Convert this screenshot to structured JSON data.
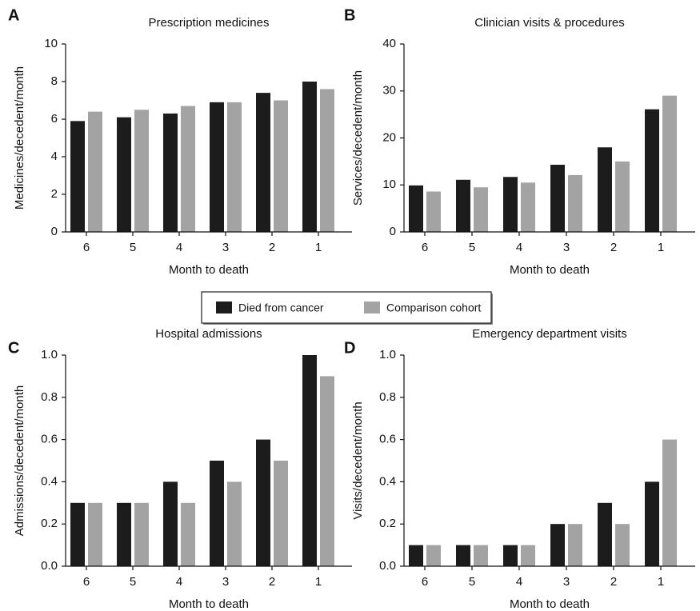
{
  "chart_data": [
    {
      "type": "bar",
      "label": "A",
      "title": "Prescription medicines",
      "x_label": "Month to death",
      "y_label": "Medicines/decedent/month",
      "categories": [
        "6",
        "5",
        "4",
        "3",
        "2",
        "1"
      ],
      "series": [
        {
          "name": "Died from cancer",
          "color": "#1c1c1c",
          "values": [
            5.9,
            6.1,
            6.3,
            6.9,
            7.4,
            8.0
          ]
        },
        {
          "name": "Comparison cohort",
          "color": "#a3a3a3",
          "values": [
            6.4,
            6.5,
            6.7,
            6.9,
            7.0,
            7.6
          ]
        }
      ],
      "ylim": [
        0,
        10
      ],
      "yticks": [
        0,
        2,
        4,
        6,
        8,
        10
      ]
    },
    {
      "type": "bar",
      "label": "B",
      "title": "Clinician visits & procedures",
      "x_label": "Month to death",
      "y_label": "Services/decedent/month",
      "categories": [
        "6",
        "5",
        "4",
        "3",
        "2",
        "1"
      ],
      "series": [
        {
          "color": "#1c1c1c",
          "values": [
            9.9,
            11.1,
            11.7,
            14.3,
            18.0,
            26.1
          ]
        },
        {
          "color": "#a3a3a3",
          "values": [
            8.6,
            9.5,
            10.5,
            12.1,
            15.0,
            29.0
          ]
        }
      ],
      "ylim": [
        0,
        40
      ],
      "yticks": [
        0,
        10,
        20,
        30,
        40
      ]
    },
    {
      "type": "bar",
      "label": "C",
      "title": "Hospital admissions",
      "x_label": "Month to death",
      "y_label": "Admissions/decedent/month",
      "categories": [
        "6",
        "5",
        "4",
        "3",
        "2",
        "1"
      ],
      "series": [
        {
          "color": "#1c1c1c",
          "values": [
            0.3,
            0.3,
            0.4,
            0.5,
            0.6,
            1.0
          ]
        },
        {
          "color": "#a3a3a3",
          "values": [
            0.3,
            0.3,
            0.3,
            0.4,
            0.5,
            0.9
          ]
        }
      ],
      "ylim": [
        0,
        1
      ],
      "yticks": [
        {
          "value": 0,
          "label": "0.0"
        },
        {
          "value": 0.2,
          "label": "0.2"
        },
        {
          "value": 0.4,
          "label": "0.4"
        },
        {
          "value": 0.6,
          "label": "0.6"
        },
        {
          "value": 0.8,
          "label": "0.8"
        },
        {
          "value": 1,
          "label": "1.0"
        }
      ]
    },
    {
      "type": "bar",
      "label": "D",
      "title": "Emergency department visits",
      "x_label": "Month to death",
      "y_label": "Visits/decedent/month",
      "categories": [
        "6",
        "5",
        "4",
        "3",
        "2",
        "1"
      ],
      "series": [
        {
          "color": "#1c1c1c",
          "values": [
            0.1,
            0.1,
            0.1,
            0.2,
            0.3,
            0.4
          ]
        },
        {
          "color": "#a3a3a3",
          "values": [
            0.1,
            0.1,
            0.1,
            0.2,
            0.2,
            0.6
          ]
        }
      ],
      "ylim": [
        0,
        1
      ],
      "yticks": [
        {
          "value": 0,
          "label": "0.0"
        },
        {
          "value": 0.2,
          "label": "0.2"
        },
        {
          "value": 0.4,
          "label": "0.4"
        },
        {
          "value": 0.6,
          "label": "0.6"
        },
        {
          "value": 0.8,
          "label": "0.8"
        },
        {
          "value": 1,
          "label": "1.0"
        }
      ]
    }
  ]
}
